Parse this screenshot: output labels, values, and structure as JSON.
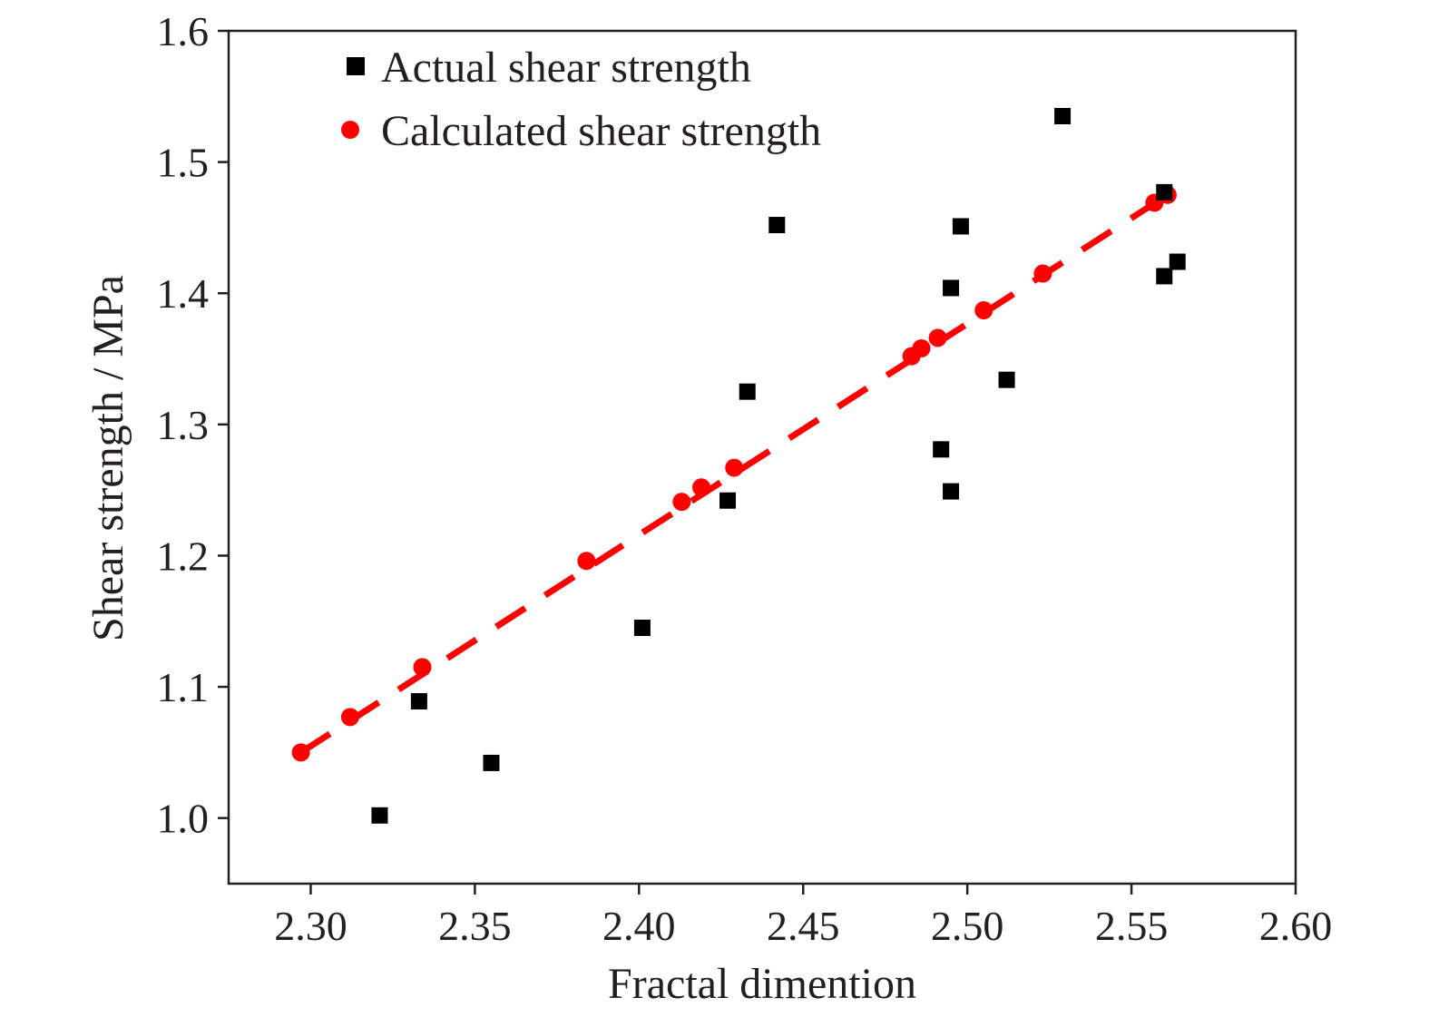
{
  "chart_data": {
    "type": "scatter",
    "xlabel": "Fractal dimention",
    "ylabel": "Shear strength / MPa",
    "xlim": [
      2.275,
      2.6
    ],
    "ylim": [
      0.95,
      1.6
    ],
    "x_ticks": [
      "2.30",
      "2.35",
      "2.40",
      "2.45",
      "2.50",
      "2.55",
      "2.60"
    ],
    "y_ticks": [
      "1.0",
      "1.1",
      "1.2",
      "1.3",
      "1.4",
      "1.5",
      "1.6"
    ],
    "x_tick_values": [
      2.3,
      2.35,
      2.4,
      2.45,
      2.5,
      2.55,
      2.6
    ],
    "y_tick_values": [
      1.0,
      1.1,
      1.2,
      1.3,
      1.4,
      1.5,
      1.6
    ],
    "grid": false,
    "legend_position": "top-left",
    "series": [
      {
        "name": "Actual shear strength",
        "marker": "square",
        "color": "#000000",
        "points": [
          {
            "x": 2.321,
            "y": 1.002
          },
          {
            "x": 2.333,
            "y": 1.089
          },
          {
            "x": 2.355,
            "y": 1.042
          },
          {
            "x": 2.401,
            "y": 1.145
          },
          {
            "x": 2.427,
            "y": 1.242
          },
          {
            "x": 2.433,
            "y": 1.325
          },
          {
            "x": 2.442,
            "y": 1.452
          },
          {
            "x": 2.492,
            "y": 1.281
          },
          {
            "x": 2.495,
            "y": 1.249
          },
          {
            "x": 2.495,
            "y": 1.404
          },
          {
            "x": 2.498,
            "y": 1.451
          },
          {
            "x": 2.512,
            "y": 1.334
          },
          {
            "x": 2.529,
            "y": 1.535
          },
          {
            "x": 2.56,
            "y": 1.413
          },
          {
            "x": 2.56,
            "y": 1.477
          },
          {
            "x": 2.564,
            "y": 1.424
          }
        ]
      },
      {
        "name": "Calculated shear strength",
        "marker": "circle",
        "color": "#ff0000",
        "points": [
          {
            "x": 2.297,
            "y": 1.05
          },
          {
            "x": 2.312,
            "y": 1.077
          },
          {
            "x": 2.334,
            "y": 1.115
          },
          {
            "x": 2.384,
            "y": 1.196
          },
          {
            "x": 2.413,
            "y": 1.241
          },
          {
            "x": 2.419,
            "y": 1.252
          },
          {
            "x": 2.429,
            "y": 1.267
          },
          {
            "x": 2.483,
            "y": 1.352
          },
          {
            "x": 2.486,
            "y": 1.358
          },
          {
            "x": 2.491,
            "y": 1.366
          },
          {
            "x": 2.505,
            "y": 1.387
          },
          {
            "x": 2.523,
            "y": 1.415
          },
          {
            "x": 2.557,
            "y": 1.469
          },
          {
            "x": 2.561,
            "y": 1.475
          }
        ]
      }
    ],
    "fit_line": {
      "style": "dashed",
      "color": "#ff0000",
      "start": {
        "x": 2.297,
        "y": 1.05
      },
      "end": {
        "x": 2.561,
        "y": 1.475
      }
    }
  }
}
